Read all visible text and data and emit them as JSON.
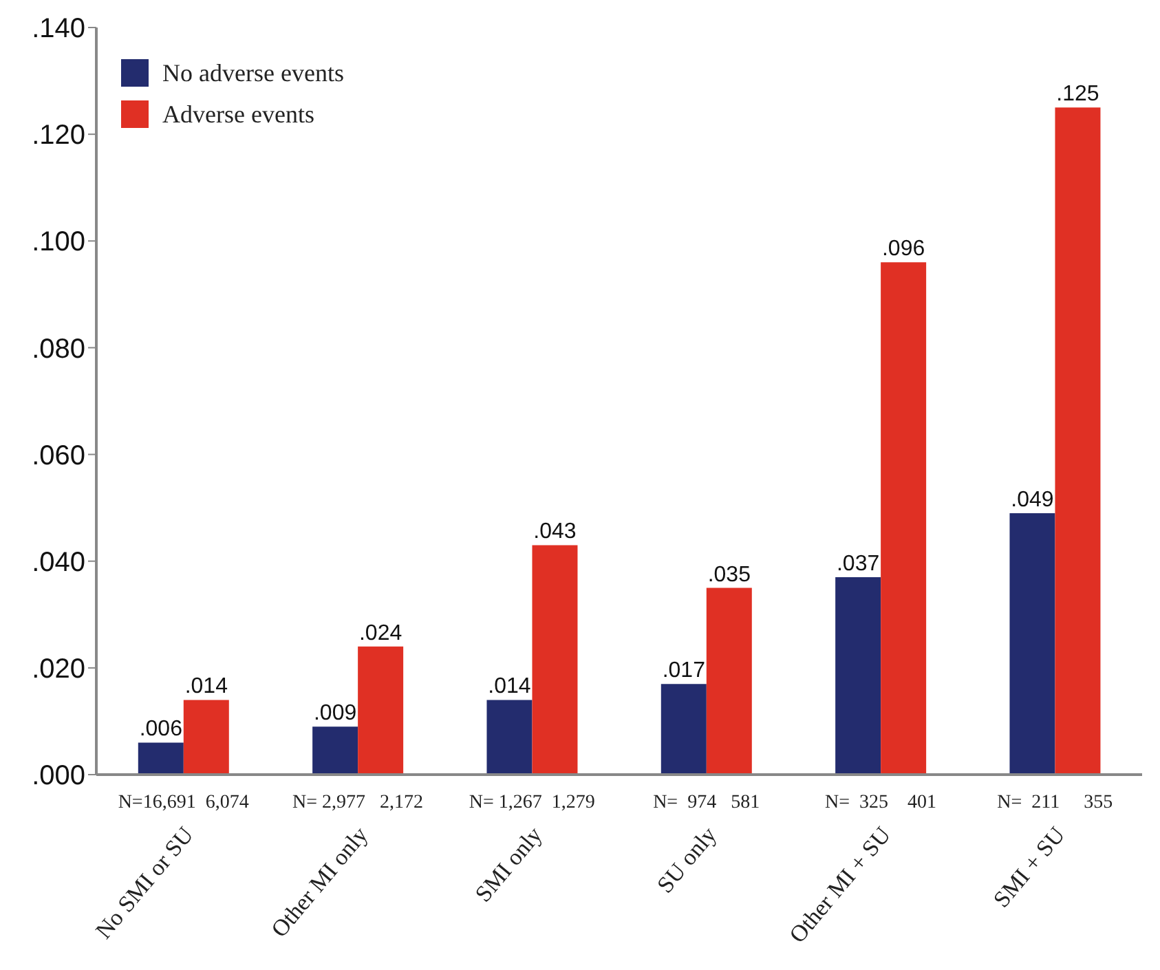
{
  "chart_data": {
    "type": "bar",
    "categories": [
      "No SMI or SU",
      "Other MI only",
      "SMI only",
      "SU only",
      "Other MI + SU",
      "SMI + SU"
    ],
    "series": [
      {
        "name": "No adverse events",
        "color": "#232c6e",
        "values": [
          0.006,
          0.009,
          0.014,
          0.017,
          0.037,
          0.049
        ],
        "value_labels": [
          ".006",
          ".009",
          ".014",
          ".017",
          ".037",
          ".049"
        ]
      },
      {
        "name": "Adverse events",
        "color": "#e03024",
        "values": [
          0.014,
          0.024,
          0.043,
          0.035,
          0.096,
          0.125
        ],
        "value_labels": [
          ".014",
          ".024",
          ".043",
          ".035",
          ".096",
          ".125"
        ]
      }
    ],
    "ylim": [
      0,
      0.14
    ],
    "yticks": [
      {
        "value": 0,
        "label": ".000"
      },
      {
        "value": 0.02,
        "label": ".020"
      },
      {
        "value": 0.04,
        "label": ".040"
      },
      {
        "value": 0.06,
        "label": ".060"
      },
      {
        "value": 0.08,
        "label": ".080"
      },
      {
        "value": 0.1,
        "label": ".100"
      },
      {
        "value": 0.12,
        "label": ".120"
      },
      {
        "value": 0.14,
        "label": ".140"
      }
    ],
    "annotations": [
      "N=16,691  6,074",
      "N= 2,977   2,172",
      "N= 1,267  1,279",
      "N=  974   581",
      "N=  325    401",
      "N=  211     355"
    ],
    "legend": "top left",
    "grid": false
  }
}
